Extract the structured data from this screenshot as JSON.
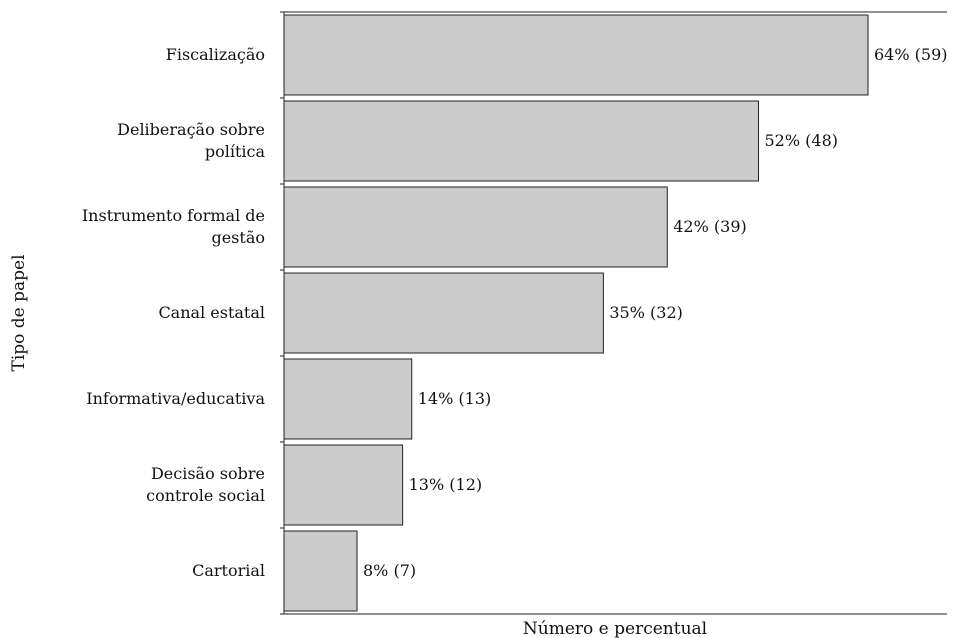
{
  "chart_data": {
    "type": "bar",
    "orientation": "horizontal",
    "categories": [
      [
        "Fiscalização"
      ],
      [
        "Deliberação sobre",
        "política"
      ],
      [
        "Instrumento formal de",
        "gestão"
      ],
      [
        "Canal estatal"
      ],
      [
        "Informativa/educativa"
      ],
      [
        "Decisão sobre",
        "controle social"
      ],
      [
        "Cartorial"
      ]
    ],
    "values": [
      64,
      52,
      42,
      35,
      14,
      13,
      8
    ],
    "counts": [
      59,
      48,
      39,
      32,
      13,
      12,
      7
    ],
    "data_labels": [
      "64% (59)",
      "52% (48)",
      "42% (39)",
      "35% (32)",
      "14% (13)",
      "13% (12)",
      "8% (7)"
    ],
    "xlabel": "Número e percentual",
    "ylabel": "Tipo de papel",
    "xlim": [
      0,
      75
    ],
    "grid": false,
    "bar_color": "#cccccc",
    "bar_edge_color": "#222222"
  }
}
